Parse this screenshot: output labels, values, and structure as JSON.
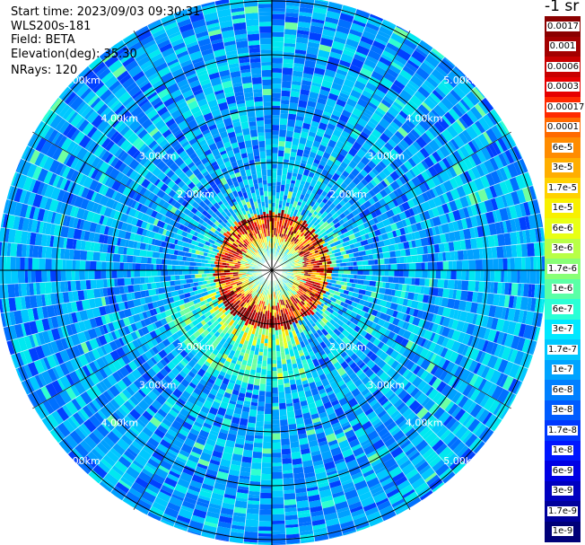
{
  "header": {
    "start_time": "Start time: 2023/09/03 09:30:31",
    "instrument": "WLS200s-181",
    "field": "Field: BETA",
    "elevation": "Elevation(deg): 35.30",
    "nrays": "NRays: 120"
  },
  "colorbar": {
    "unit_label": "-1 sr",
    "ticks": [
      "0.0017",
      "0.001",
      "0.0006",
      "0.0003",
      "0.00017",
      "0.0001",
      "6e-5",
      "3e-5",
      "1.7e-5",
      "1e-5",
      "6e-6",
      "3e-6",
      "1.7e-6",
      "1e-6",
      "6e-7",
      "3e-7",
      "1.7e-7",
      "1e-7",
      "6e-8",
      "3e-8",
      "1.7e-8",
      "1e-8",
      "6e-9",
      "3e-9",
      "1.7e-9",
      "1e-9"
    ],
    "colors": [
      "#8b0000",
      "#a30000",
      "#c80000",
      "#e60000",
      "#ff2a00",
      "#ff6a00",
      "#ff8c00",
      "#ffae00",
      "#ffd200",
      "#f8f000",
      "#e8ff14",
      "#b8ff46",
      "#88ff76",
      "#5affa6",
      "#2affd6",
      "#00e8ff",
      "#00c8ff",
      "#00a4ff",
      "#0080ff",
      "#005cff",
      "#0038ff",
      "#0016ff",
      "#0000e4",
      "#0000c0",
      "#00009c",
      "#000078"
    ]
  },
  "chart_data": {
    "type": "heatmap",
    "projection": "polar PPI",
    "field": "BETA",
    "elevation_deg": 35.3,
    "n_rays": 120,
    "range_rings_km": [
      1.0,
      2.0,
      3.0,
      4.0,
      5.0
    ],
    "ring_labels": [
      "2.00km",
      "3.00km",
      "4.00km",
      "5.00km"
    ],
    "azimuth_lines_deg": [
      0,
      30,
      60,
      90,
      120,
      150,
      180,
      210,
      240,
      270,
      300,
      330
    ],
    "color_scale": "log",
    "value_range": [
      1e-09,
      0.0017
    ],
    "features": {
      "near_field_blanking_km": 0.2,
      "high_backscatter_ring_km": 0.8,
      "sparse_region_km": [
        0.9,
        2.3
      ],
      "background_level": "1e-8"
    }
  }
}
